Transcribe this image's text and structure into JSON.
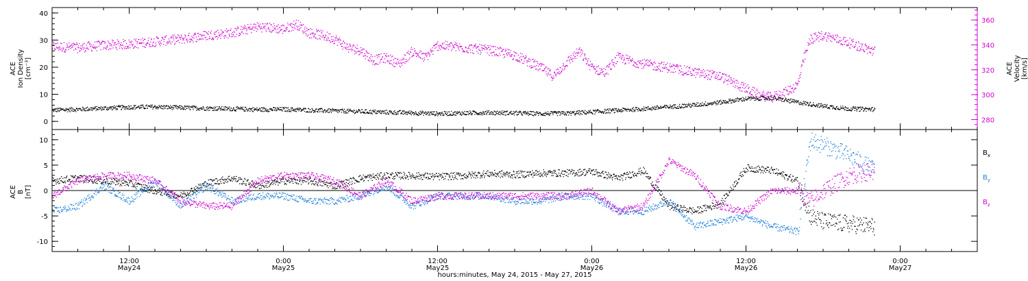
{
  "colors": {
    "axis": "#000000",
    "density": "#000000",
    "velocity": "#d000d0",
    "bx": "#000000",
    "by": "#1e7fd8",
    "bz": "#d000d0"
  },
  "x_axis": {
    "title": "hours:minutes, May 24, 2015 - May 27, 2015",
    "ticks": [
      {
        "t": 12,
        "time": "12:00",
        "date": "May24"
      },
      {
        "t": 24,
        "time": "0:00",
        "date": "May25"
      },
      {
        "t": 36,
        "time": "12:00",
        "date": "May25"
      },
      {
        "t": 48,
        "time": "0:00",
        "date": "May26"
      },
      {
        "t": 60,
        "time": "12:00",
        "date": "May26"
      },
      {
        "t": 72,
        "time": "0:00",
        "date": "May27"
      }
    ]
  },
  "chart_data": [
    {
      "type": "scatter",
      "panel": "top",
      "ylabel_left": [
        "ACE",
        "Ion Density",
        "[cm⁻³]"
      ],
      "ylabel_right": [
        "ACE",
        "Velocity",
        "[km/s]"
      ],
      "xlim": [
        6,
        78
      ],
      "ylim_left": [
        -3,
        42
      ],
      "ylim_right": [
        272,
        370
      ],
      "yticks_left": [
        0,
        10,
        20,
        30,
        40
      ],
      "yticks_right": [
        280,
        300,
        320,
        340,
        360
      ],
      "series": [
        {
          "axis": "left",
          "x": [
            6,
            8,
            10,
            12,
            14,
            16,
            18,
            20,
            22,
            24,
            26,
            28,
            30,
            32,
            34,
            36,
            38,
            40,
            42,
            44,
            46,
            48,
            50,
            52,
            54,
            56,
            58,
            60,
            62,
            64,
            66,
            68,
            70
          ],
          "y": [
            4.3,
            4.6,
            5,
            5.4,
            5.5,
            5.2,
            5,
            4.8,
            4.5,
            4.6,
            4.3,
            4,
            3.8,
            3.5,
            3.3,
            3,
            3.2,
            3.4,
            3.2,
            3,
            3.1,
            3.6,
            4.2,
            4.8,
            5.5,
            6.2,
            7.2,
            8.5,
            8.8,
            7.2,
            5.8,
            4.8,
            4.6
          ]
        },
        {
          "axis": "right",
          "x": [
            6,
            8,
            10,
            12,
            14,
            16,
            18,
            20,
            22,
            24,
            25,
            26,
            27,
            28,
            29,
            30,
            31,
            32,
            33,
            34,
            35,
            36,
            38,
            40,
            42,
            44,
            45,
            46,
            47,
            48,
            49,
            50,
            52,
            54,
            56,
            58,
            60,
            61,
            62,
            63,
            64,
            64.5,
            65,
            66,
            68,
            70
          ],
          "y": [
            339,
            338,
            340,
            341,
            343,
            345,
            348,
            350,
            355,
            353,
            357,
            350,
            348,
            345,
            338,
            336,
            328,
            330,
            325,
            335,
            330,
            340,
            338,
            336,
            332,
            322,
            315,
            326,
            335,
            322,
            318,
            330,
            325,
            322,
            318,
            315,
            305,
            300,
            298,
            302,
            308,
            330,
            345,
            348,
            342,
            335
          ]
        }
      ]
    },
    {
      "type": "scatter",
      "panel": "bottom",
      "ylabel": [
        "ACE",
        "B",
        "[nT]"
      ],
      "xlim": [
        6,
        78
      ],
      "ylim": [
        -12,
        12
      ],
      "yticks": [
        -10,
        -5,
        0,
        5,
        10
      ],
      "series": [
        {
          "name": "B",
          "sub": "x",
          "x": [
            6,
            8,
            10,
            12,
            14,
            16,
            18,
            20,
            22,
            24,
            26,
            28,
            30,
            32,
            34,
            36,
            38,
            40,
            42,
            44,
            46,
            48,
            50,
            52,
            54,
            56,
            58,
            60,
            62,
            64,
            65,
            66,
            68,
            70
          ],
          "y": [
            2,
            2.5,
            2,
            1.5,
            0,
            -1,
            1.5,
            2.5,
            1,
            2,
            2,
            1,
            2.5,
            3,
            3,
            2.8,
            3,
            3.4,
            3.2,
            3.5,
            3.5,
            3.8,
            2.5,
            4,
            -3,
            -4,
            -2.5,
            4.5,
            4,
            2,
            -5,
            -6,
            -6.5,
            -7
          ]
        },
        {
          "name": "B",
          "sub": "y",
          "x": [
            6,
            8,
            10,
            12,
            14,
            16,
            18,
            20,
            22,
            24,
            26,
            28,
            30,
            32,
            34,
            36,
            38,
            40,
            42,
            44,
            46,
            48,
            50,
            52,
            54,
            56,
            58,
            60,
            62,
            64,
            65,
            66,
            68,
            70
          ],
          "y": [
            -4,
            -3,
            1,
            -2,
            2,
            -3,
            1,
            -2,
            -1,
            -1,
            -2,
            -2,
            -1,
            1,
            -3,
            -1,
            -1,
            -1,
            -2,
            -2,
            -1,
            -1,
            -4,
            -4,
            -2,
            -7,
            -6,
            -5,
            -7,
            -8,
            10,
            9,
            7,
            4
          ]
        },
        {
          "name": "B",
          "sub": "z",
          "x": [
            6,
            8,
            10,
            12,
            14,
            16,
            18,
            20,
            22,
            24,
            26,
            28,
            30,
            32,
            34,
            36,
            38,
            40,
            42,
            44,
            46,
            48,
            50,
            52,
            54,
            56,
            58,
            60,
            62,
            64,
            65,
            66,
            68,
            70
          ],
          "y": [
            -1,
            2,
            3,
            3,
            2,
            -2,
            -3,
            -3,
            2,
            3,
            3,
            2,
            -1,
            2,
            -2,
            -1,
            -1,
            -1,
            -1,
            -1,
            -1,
            0,
            -4,
            -3,
            6,
            3,
            -3,
            -4,
            0,
            0,
            -2,
            0,
            3,
            4
          ]
        }
      ]
    }
  ]
}
